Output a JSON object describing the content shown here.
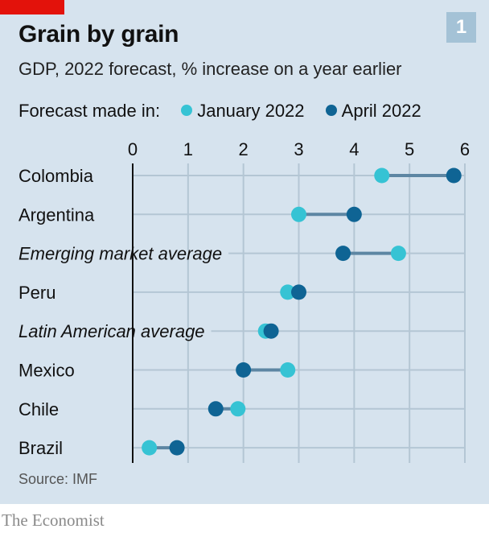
{
  "header": {
    "title": "Grain by grain",
    "subtitle": "GDP, 2022 forecast, % increase on a year earlier",
    "chart_number": "1"
  },
  "legend": {
    "prefix": "Forecast made in:",
    "items": [
      {
        "label": "January 2022",
        "color": "#36c3d4"
      },
      {
        "label": "April 2022",
        "color": "#0f6494"
      }
    ]
  },
  "footer": {
    "source": "Source: IMF",
    "brand": "The Economist"
  },
  "colors": {
    "background": "#d6e3ee",
    "accent_red": "#e3120b",
    "connector": "#5d86a3",
    "gridline": "#b4c6d4"
  },
  "chart_data": {
    "type": "dumbbell",
    "title": "Grain by grain",
    "subtitle": "GDP, 2022 forecast, % increase on a year earlier",
    "xlim": [
      0,
      6
    ],
    "xticks": [
      0,
      1,
      2,
      3,
      4,
      5,
      6
    ],
    "grid": true,
    "legend_position": "top",
    "categories": [
      "Colombia",
      "Argentina",
      "Emerging market average",
      "Peru",
      "Latin American average",
      "Mexico",
      "Chile",
      "Brazil"
    ],
    "italic_categories": [
      "Emerging market average",
      "Latin American average"
    ],
    "series": [
      {
        "name": "January 2022",
        "values": [
          4.5,
          3.0,
          4.8,
          2.8,
          2.4,
          2.8,
          1.9,
          0.3
        ]
      },
      {
        "name": "April 2022",
        "values": [
          5.8,
          4.0,
          3.8,
          3.0,
          2.5,
          2.0,
          1.5,
          0.8
        ]
      }
    ]
  }
}
